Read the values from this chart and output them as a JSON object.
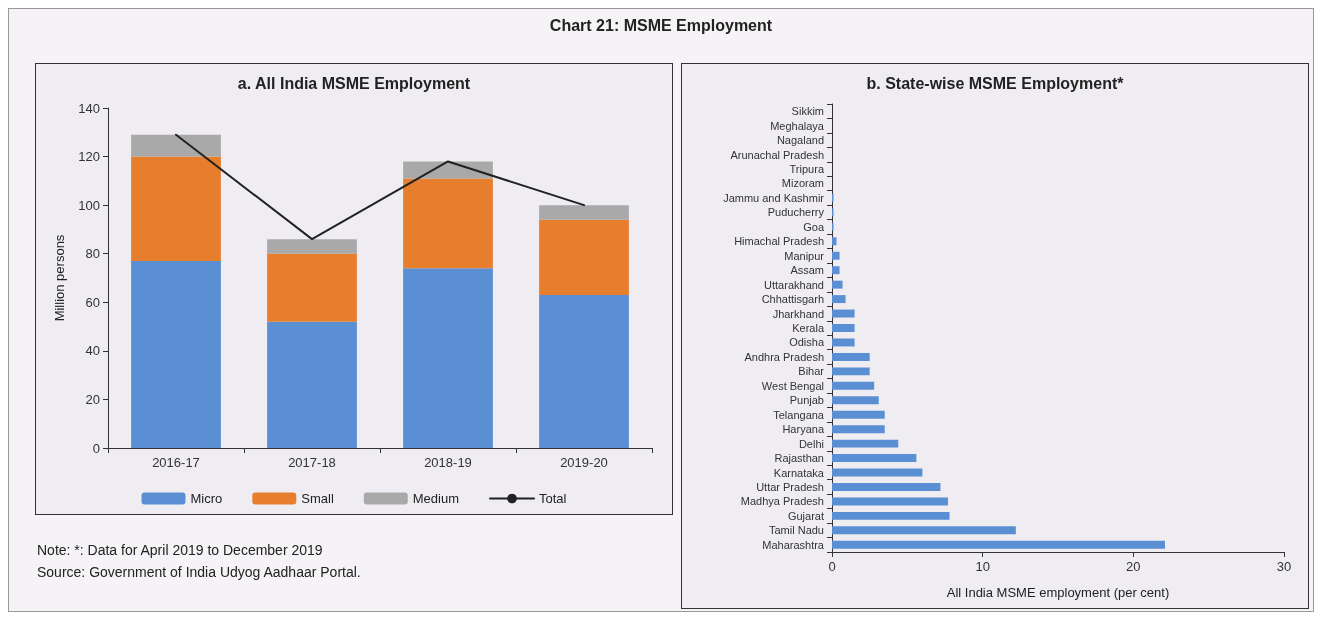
{
  "chart_data": [
    {
      "type": "bar",
      "title": "a. All India MSME Employment",
      "ylabel": "Million persons",
      "categories": [
        "2016-17",
        "2017-18",
        "2018-19",
        "2019-20"
      ],
      "stacked": true,
      "series": [
        {
          "name": "Micro",
          "color": "#5b8fd4",
          "values": [
            77,
            52,
            74,
            63
          ]
        },
        {
          "name": "Small",
          "color": "#e67e2e",
          "values": [
            43,
            28,
            37,
            31
          ]
        },
        {
          "name": "Medium",
          "color": "#a9a9a9",
          "values": [
            9,
            6,
            7,
            6
          ]
        },
        {
          "name": "Total",
          "type": "line",
          "color": "#222222",
          "values": [
            129,
            86,
            118,
            100
          ]
        }
      ],
      "ylim": [
        0,
        140
      ],
      "yticks": [
        0,
        20,
        40,
        60,
        80,
        100,
        120,
        140
      ],
      "grid": false,
      "legend": "bottom",
      "marker": "none",
      "line_style": "solid",
      "annotations": [
        "Chart 21: MSME Employment",
        "Note: *: Data for April 2019 to December 2019",
        "Source: Government of India Udyog Aadhaar Portal."
      ]
    },
    {
      "type": "bar",
      "orientation": "horizontal",
      "title": "b. State-wise MSME Employment*",
      "xlabel": "All India MSME employment (per cent)",
      "categories": [
        "Sikkim",
        "Meghalaya",
        "Nagaland",
        "Arunachal Pradesh",
        "Tripura",
        "Mizoram",
        "Jammu and Kashmir",
        "Puducherry",
        "Goa",
        "Himachal Pradesh",
        "Manipur",
        "Assam",
        "Uttarakhand",
        "Chhattisgarh",
        "Jharkhand",
        "Kerala",
        "Odisha",
        "Andhra Pradesh",
        "Bihar",
        "West Bengal",
        "Punjab",
        "Telangana",
        "Haryana",
        "Delhi",
        "Rajasthan",
        "Karnataka",
        "Uttar Pradesh",
        "Madhya Pradesh",
        "Gujarat",
        "Tamil Nadu",
        "Maharashtra"
      ],
      "values": [
        0,
        0,
        0,
        0,
        0,
        0,
        0.1,
        0.1,
        0.1,
        0.3,
        0.5,
        0.5,
        0.7,
        0.9,
        1.5,
        1.5,
        1.5,
        2.5,
        2.5,
        2.8,
        3.1,
        3.5,
        3.5,
        4.4,
        5.6,
        6.0,
        7.2,
        7.7,
        7.8,
        12.2,
        22.1
      ],
      "color": "#5b8fd4",
      "xlim": [
        0,
        30
      ],
      "xticks": [
        0,
        10,
        20,
        30
      ],
      "grid": false,
      "legend": false
    }
  ]
}
